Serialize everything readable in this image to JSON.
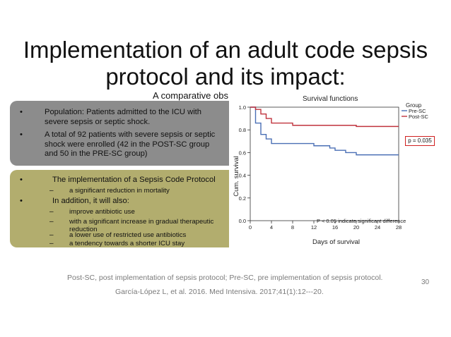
{
  "slide": {
    "title_line1": "Implementation of an adult code sepsis",
    "title_line2": "protocol and its impact:",
    "subtitle": "A comparative obs",
    "footnote": "Post-SC, post implementation of sepsis protocol; Pre-SC, pre implementation of sepsis protocol.",
    "citation": "García-López L, et al. 2016. Med Intensiva. 2017;41(1):12---20.",
    "slide_number": "30"
  },
  "box1": {
    "color": "#8c8c8c",
    "bullets": [
      "Population: Patients admitted to the ICU with severe sepsis or septic shock.",
      "A total of 92 patients with severe sepsis or septic shock were enrolled (42 in the POST-SC group and 50 in the PRE-SC group)"
    ]
  },
  "box2": {
    "color": "#b2ad6e",
    "bullet1": "The implementation of a Sepsis Code Protocol",
    "sub1": "a significant reduction in mortality",
    "bullet2": "In addition, it will also:",
    "subs": [
      "improve antibiotic use",
      "with a significant increase in gradual therapeutic reduction",
      "a lower use of restricted use antibiotics",
      "a tendency towards a shorter ICU stay"
    ]
  },
  "bullet_glyph": "•",
  "dash_glyph": "–",
  "chart_data": {
    "type": "line",
    "title": "Survival functions",
    "xlabel": "Days of survival",
    "ylabel": "Cum. survival",
    "xlim": [
      0,
      28
    ],
    "ylim": [
      0,
      1.0
    ],
    "x_ticks": [
      0,
      4,
      8,
      12,
      16,
      20,
      24,
      28
    ],
    "y_ticks": [
      0.0,
      0.2,
      0.4,
      0.6,
      0.8,
      1.0
    ],
    "y_tick_labels": [
      "0.0",
      "0.2",
      "0.4",
      "0.6",
      "0.8",
      "1.0"
    ],
    "legend_title": "Group",
    "legend_position": "right",
    "annotation": "P < 0.05 indicate significant difference",
    "p_value": "p = 0.035",
    "series": [
      {
        "name": "Pre-SC",
        "color": "#4a6fb5",
        "x": [
          0,
          1,
          2,
          3,
          4,
          12,
          15,
          16,
          18,
          20,
          28
        ],
        "y": [
          1.0,
          0.86,
          0.76,
          0.72,
          0.68,
          0.66,
          0.64,
          0.62,
          0.6,
          0.58,
          0.58
        ]
      },
      {
        "name": "Post-SC",
        "color": "#c0333d",
        "x": [
          0,
          1,
          2,
          3,
          4,
          8,
          20,
          28
        ],
        "y": [
          1.0,
          0.98,
          0.94,
          0.9,
          0.86,
          0.84,
          0.83,
          0.83
        ]
      }
    ]
  }
}
